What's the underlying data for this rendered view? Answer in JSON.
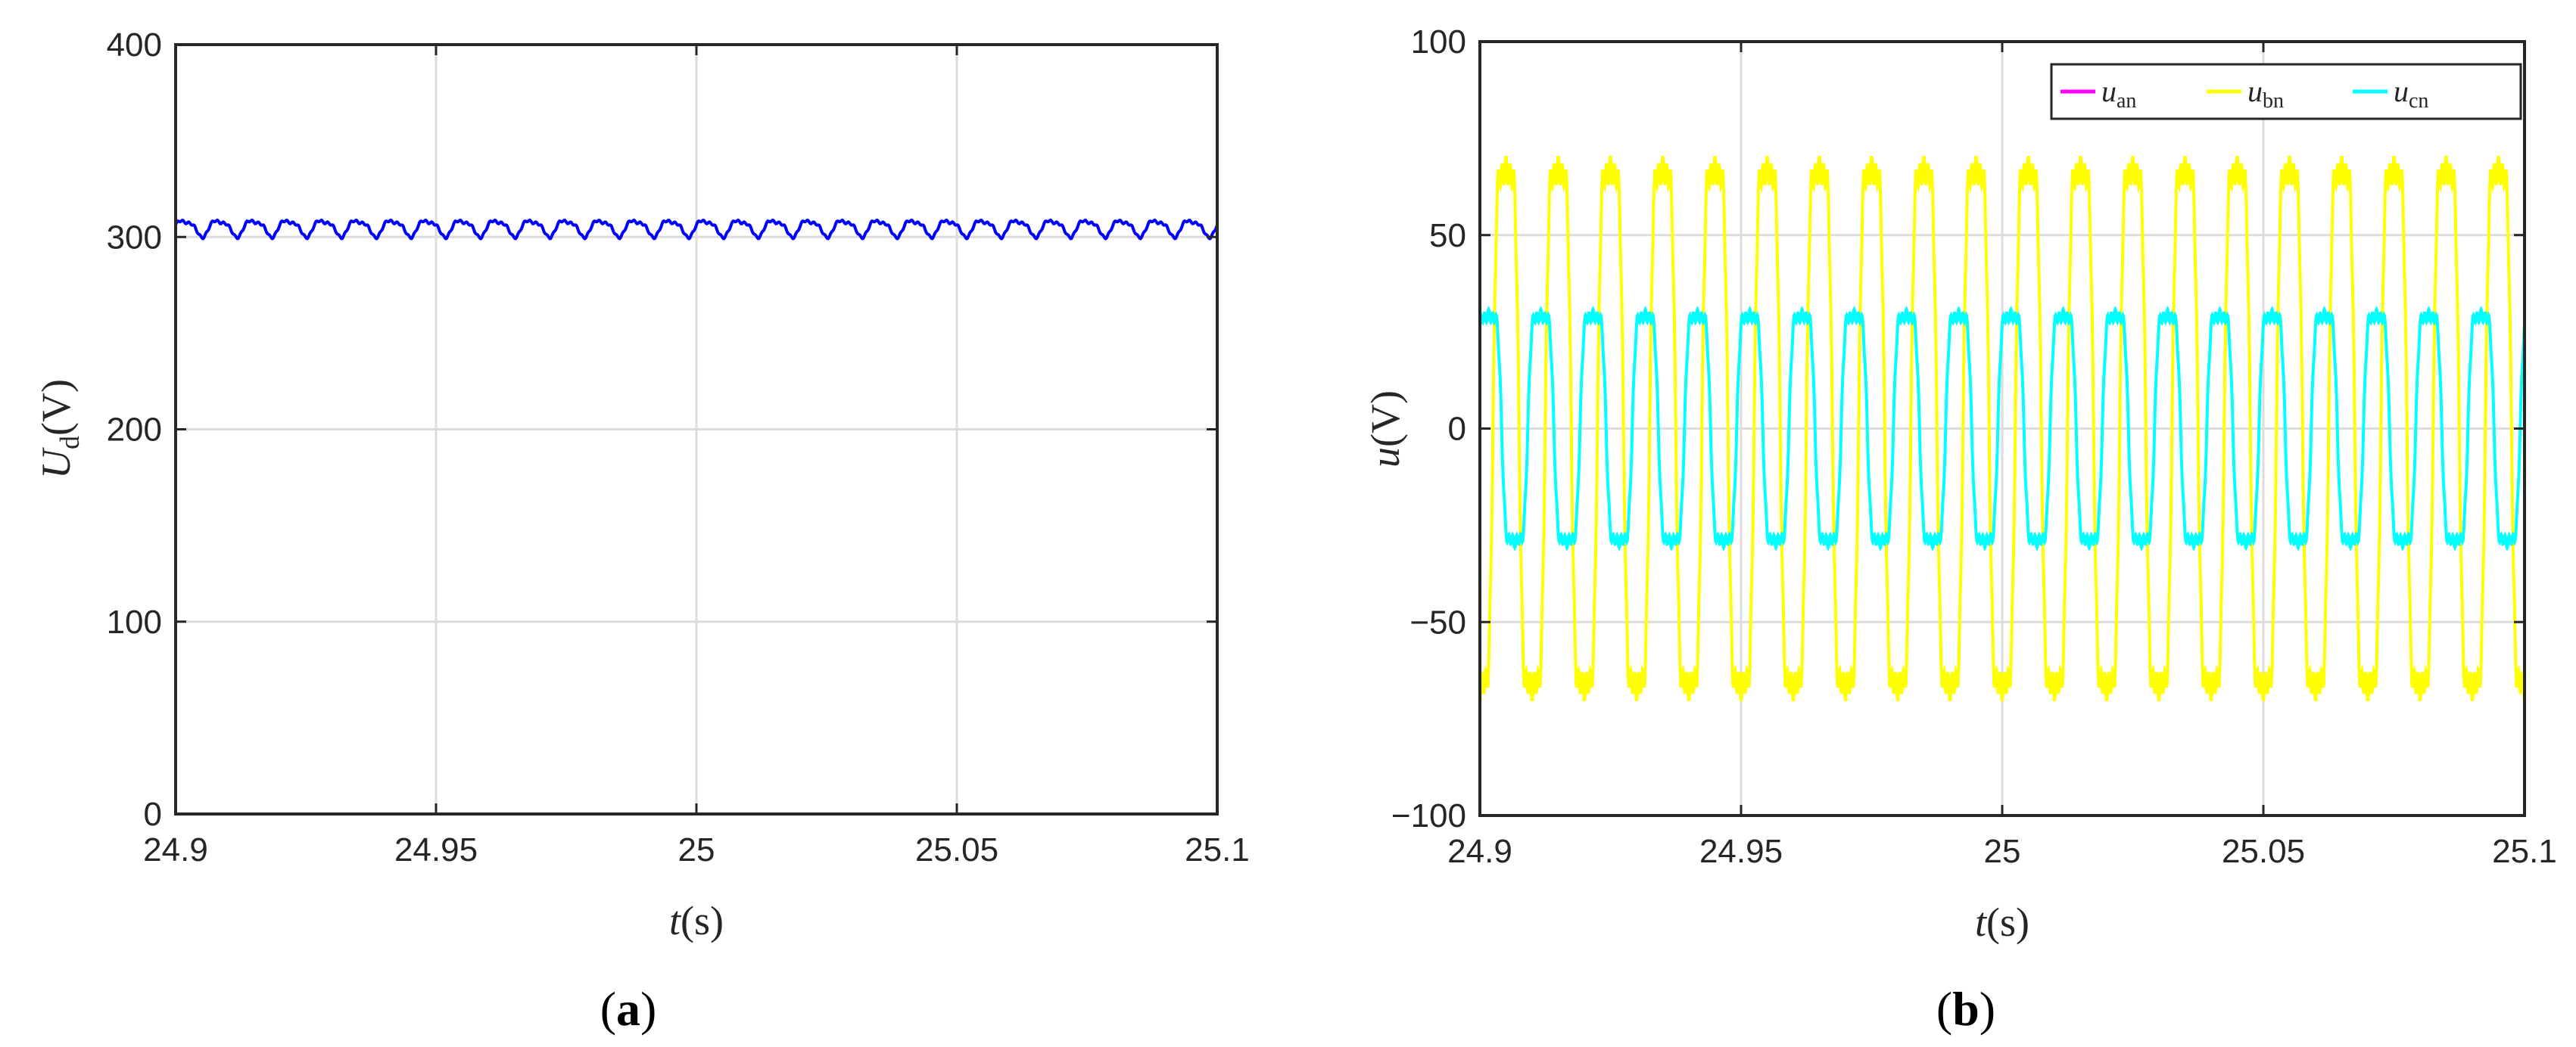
{
  "chart_data": [
    {
      "panel_label": "a",
      "type": "line",
      "xlabel": {
        "var": "t",
        "unit": "(s)"
      },
      "ylabel": {
        "var": "U",
        "sub": "d",
        "unit": "(V)"
      },
      "xlim": [
        24.9,
        25.1
      ],
      "ylim": [
        0,
        400
      ],
      "xticks": [
        24.9,
        24.95,
        25,
        25.05,
        25.1
      ],
      "xtick_labels": [
        "24.9",
        "24.95",
        "25",
        "25.05",
        "25.1"
      ],
      "yticks": [
        0,
        100,
        200,
        300,
        400
      ],
      "ytick_labels": [
        "0",
        "100",
        "200",
        "300",
        "400"
      ],
      "grid": true,
      "series": [
        {
          "color": "#0000ff",
          "mean": 305,
          "ripple_amplitude": 4,
          "ripple_frequency_hz": 150
        }
      ]
    },
    {
      "panel_label": "b",
      "type": "line",
      "xlabel": {
        "var": "t",
        "unit": "(s)"
      },
      "ylabel": {
        "var": "u",
        "unit": "(V)"
      },
      "xlim": [
        24.9,
        25.1
      ],
      "ylim": [
        -100,
        100
      ],
      "xticks": [
        24.9,
        24.95,
        25,
        25.05,
        25.1
      ],
      "xtick_labels": [
        "24.9",
        "24.95",
        "25",
        "25.05",
        "25.1"
      ],
      "yticks": [
        -100,
        -50,
        0,
        50,
        100
      ],
      "ytick_labels": [
        "−100",
        "−50",
        "0",
        "50",
        "100"
      ],
      "grid": true,
      "legend_position": "top-right",
      "series": [
        {
          "name": "u",
          "sub": "an",
          "color": "#ff00ff",
          "peak": 80,
          "frequency_hz": 100,
          "phase_deg": 0,
          "visible_in_plot": false
        },
        {
          "name": "u",
          "sub": "bn",
          "color": "#ffff00",
          "peak": 80,
          "frequency_hz": 100,
          "phase_deg": -90
        },
        {
          "name": "u",
          "sub": "cn",
          "color": "#00ffff",
          "peak": 35,
          "frequency_hz": 100,
          "phase_deg": 30
        }
      ]
    }
  ]
}
